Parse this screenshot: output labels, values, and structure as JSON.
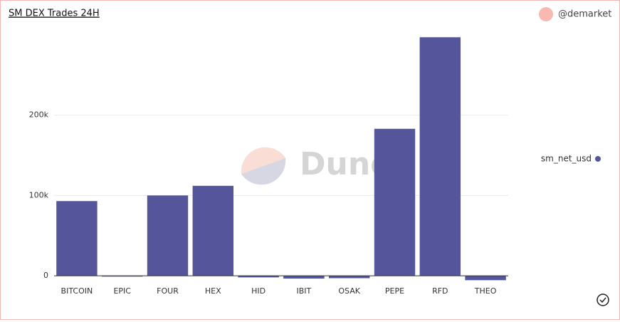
{
  "chart_data": {
    "type": "bar",
    "title": "SM DEX Trades 24H",
    "author": "@demarket",
    "watermark": "Dune",
    "categories": [
      "BITCOIN",
      "EPIC",
      "FOUR",
      "HEX",
      "HID",
      "IBIT",
      "OSAK",
      "PEPE",
      "RFD",
      "THEO"
    ],
    "series": [
      {
        "name": "sm_net_usd",
        "color": "#55559b",
        "values": [
          93000,
          -1000,
          100000,
          112000,
          -2000,
          -3500,
          -3000,
          183000,
          297000,
          -5500
        ]
      }
    ],
    "ylim": [
      -7000,
      307000
    ],
    "yticks": [
      0,
      {
        "value": 100000,
        "label": "100k"
      },
      {
        "value": 200000,
        "label": "200k"
      }
    ],
    "grid": true,
    "legend": "right"
  }
}
